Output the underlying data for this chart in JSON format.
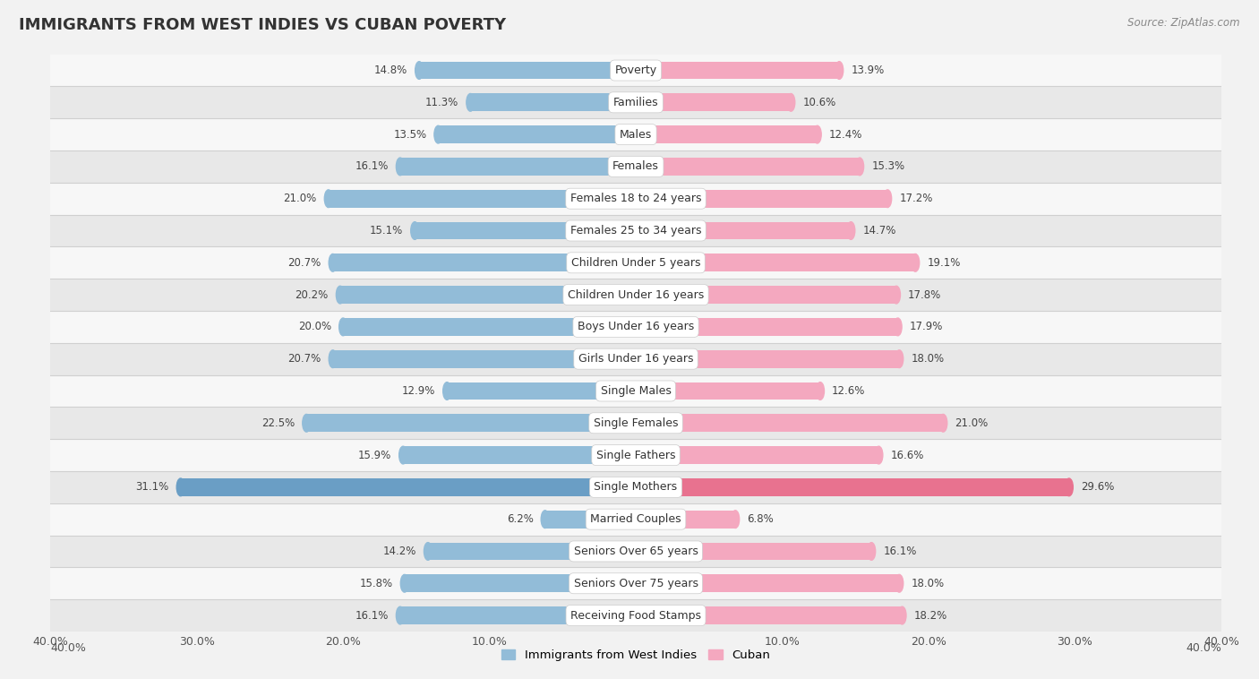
{
  "title": "IMMIGRANTS FROM WEST INDIES VS CUBAN POVERTY",
  "source": "Source: ZipAtlas.com",
  "categories": [
    "Poverty",
    "Families",
    "Males",
    "Females",
    "Females 18 to 24 years",
    "Females 25 to 34 years",
    "Children Under 5 years",
    "Children Under 16 years",
    "Boys Under 16 years",
    "Girls Under 16 years",
    "Single Males",
    "Single Females",
    "Single Fathers",
    "Single Mothers",
    "Married Couples",
    "Seniors Over 65 years",
    "Seniors Over 75 years",
    "Receiving Food Stamps"
  ],
  "west_indies": [
    14.8,
    11.3,
    13.5,
    16.1,
    21.0,
    15.1,
    20.7,
    20.2,
    20.0,
    20.7,
    12.9,
    22.5,
    15.9,
    31.1,
    6.2,
    14.2,
    15.8,
    16.1
  ],
  "cuban": [
    13.9,
    10.6,
    12.4,
    15.3,
    17.2,
    14.7,
    19.1,
    17.8,
    17.9,
    18.0,
    12.6,
    21.0,
    16.6,
    29.6,
    6.8,
    16.1,
    18.0,
    18.2
  ],
  "west_indies_color": "#92bcd8",
  "cuban_color": "#f4a8bf",
  "west_indies_highlight_color": "#6a9ec5",
  "cuban_highlight_color": "#e8728f",
  "background_color": "#f2f2f2",
  "row_bg_even": "#f7f7f7",
  "row_bg_odd": "#e8e8e8",
  "separator_color": "#d0d0d0",
  "xlim": 40.0,
  "bar_height": 0.55,
  "label_fontsize": 9.0,
  "value_fontsize": 8.5,
  "legend_label_west": "Immigrants from West Indies",
  "legend_label_cuban": "Cuban"
}
